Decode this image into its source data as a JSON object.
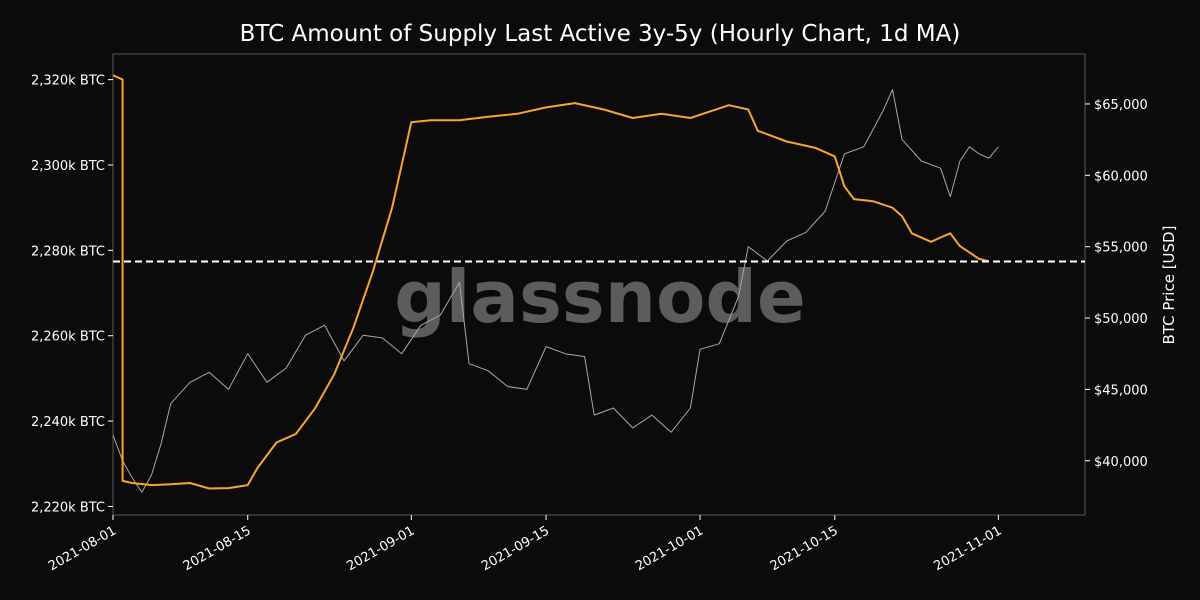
{
  "chart_data": {
    "type": "line",
    "title": "BTC Amount of Supply Last Active 3y-5y (Hourly Chart, 1d MA)",
    "watermark": "glassnode",
    "xlabel": "",
    "x_ticks": [
      "2021-08-01",
      "2021-08-15",
      "2021-09-01",
      "2021-09-15",
      "2021-10-01",
      "2021-10-15",
      "2021-11-01"
    ],
    "xlim": [
      "2021-08-01",
      "2021-11-10"
    ],
    "y_left": {
      "label": "",
      "lim": [
        2218,
        2326
      ],
      "ticks": [
        2220,
        2240,
        2260,
        2280,
        2300,
        2320
      ],
      "tick_labels": [
        "2,220k BTC",
        "2,240k BTC",
        "2,260k BTC",
        "2,280k BTC",
        "2,300k BTC",
        "2,320k BTC"
      ]
    },
    "y_right": {
      "label": "BTC Price [USD]",
      "lim": [
        36200,
        68500
      ],
      "ticks": [
        40000,
        45000,
        50000,
        55000,
        60000,
        65000
      ],
      "tick_labels": [
        "$40,000",
        "$45,000",
        "$50,000",
        "$55,000",
        "$60,000",
        "$65,000"
      ]
    },
    "reference_line": {
      "axis": "left",
      "value": 2277.4,
      "style": "dashed",
      "color": "#ffffff"
    },
    "grid": false,
    "series": [
      {
        "axis": "left",
        "color": "#f7a531",
        "points": [
          [
            "2021-08-01",
            2321
          ],
          [
            "2021-08-02",
            2320
          ],
          [
            "2021-08-02",
            2226
          ],
          [
            "2021-08-03",
            2225.5
          ],
          [
            "2021-08-05",
            2225
          ],
          [
            "2021-08-07",
            2225.2
          ],
          [
            "2021-08-09",
            2225.5
          ],
          [
            "2021-08-11",
            2224.2
          ],
          [
            "2021-08-13",
            2224.3
          ],
          [
            "2021-08-15",
            2225
          ],
          [
            "2021-08-16",
            2229
          ],
          [
            "2021-08-18",
            2235
          ],
          [
            "2021-08-20",
            2237
          ],
          [
            "2021-08-22",
            2243
          ],
          [
            "2021-08-24",
            2251
          ],
          [
            "2021-08-26",
            2262
          ],
          [
            "2021-08-28",
            2275
          ],
          [
            "2021-08-30",
            2290
          ],
          [
            "2021-09-01",
            2310
          ],
          [
            "2021-09-03",
            2310.5
          ],
          [
            "2021-09-06",
            2310.5
          ],
          [
            "2021-09-09",
            2311.3
          ],
          [
            "2021-09-12",
            2312
          ],
          [
            "2021-09-15",
            2313.5
          ],
          [
            "2021-09-18",
            2314.5
          ],
          [
            "2021-09-21",
            2313
          ],
          [
            "2021-09-24",
            2311
          ],
          [
            "2021-09-27",
            2312
          ],
          [
            "2021-09-30",
            2311
          ],
          [
            "2021-10-02",
            2312.5
          ],
          [
            "2021-10-04",
            2314
          ],
          [
            "2021-10-06",
            2313
          ],
          [
            "2021-10-07",
            2308
          ],
          [
            "2021-10-10",
            2305.5
          ],
          [
            "2021-10-13",
            2304
          ],
          [
            "2021-10-15",
            2302
          ],
          [
            "2021-10-16",
            2295
          ],
          [
            "2021-10-17",
            2292
          ],
          [
            "2021-10-19",
            2291.5
          ],
          [
            "2021-10-21",
            2290
          ],
          [
            "2021-10-22",
            2288
          ],
          [
            "2021-10-23",
            2284
          ],
          [
            "2021-10-25",
            2282
          ],
          [
            "2021-10-26",
            2283
          ],
          [
            "2021-10-27",
            2284
          ],
          [
            "2021-10-28",
            2281
          ],
          [
            "2021-10-30",
            2278
          ],
          [
            "2021-10-31",
            2277.4
          ]
        ]
      },
      {
        "axis": "right",
        "color": "#a8a8a8",
        "points": [
          [
            "2021-08-01",
            41800
          ],
          [
            "2021-08-02",
            40000
          ],
          [
            "2021-08-03",
            38800
          ],
          [
            "2021-08-04",
            37800
          ],
          [
            "2021-08-05",
            39000
          ],
          [
            "2021-08-06",
            41200
          ],
          [
            "2021-08-07",
            44000
          ],
          [
            "2021-08-09",
            45500
          ],
          [
            "2021-08-11",
            46200
          ],
          [
            "2021-08-13",
            45000
          ],
          [
            "2021-08-15",
            47500
          ],
          [
            "2021-08-17",
            45500
          ],
          [
            "2021-08-19",
            46500
          ],
          [
            "2021-08-21",
            48800
          ],
          [
            "2021-08-23",
            49500
          ],
          [
            "2021-08-25",
            47000
          ],
          [
            "2021-08-27",
            48800
          ],
          [
            "2021-08-29",
            48600
          ],
          [
            "2021-08-31",
            47500
          ],
          [
            "2021-09-02",
            49500
          ],
          [
            "2021-09-04",
            50200
          ],
          [
            "2021-09-06",
            52500
          ],
          [
            "2021-09-07",
            46800
          ],
          [
            "2021-09-09",
            46300
          ],
          [
            "2021-09-11",
            45200
          ],
          [
            "2021-09-13",
            45000
          ],
          [
            "2021-09-15",
            48000
          ],
          [
            "2021-09-17",
            47500
          ],
          [
            "2021-09-19",
            47300
          ],
          [
            "2021-09-20",
            43200
          ],
          [
            "2021-09-22",
            43700
          ],
          [
            "2021-09-24",
            42300
          ],
          [
            "2021-09-26",
            43200
          ],
          [
            "2021-09-28",
            42000
          ],
          [
            "2021-09-30",
            43700
          ],
          [
            "2021-10-01",
            47800
          ],
          [
            "2021-10-03",
            48200
          ],
          [
            "2021-10-05",
            51500
          ],
          [
            "2021-10-06",
            55000
          ],
          [
            "2021-10-08",
            54000
          ],
          [
            "2021-10-10",
            55400
          ],
          [
            "2021-10-12",
            56000
          ],
          [
            "2021-10-14",
            57500
          ],
          [
            "2021-10-15",
            59500
          ],
          [
            "2021-10-16",
            61500
          ],
          [
            "2021-10-18",
            62000
          ],
          [
            "2021-10-20",
            64500
          ],
          [
            "2021-10-21",
            66000
          ],
          [
            "2021-10-22",
            62500
          ],
          [
            "2021-10-24",
            61000
          ],
          [
            "2021-10-26",
            60500
          ],
          [
            "2021-10-27",
            58500
          ],
          [
            "2021-10-28",
            61000
          ],
          [
            "2021-10-29",
            62000
          ],
          [
            "2021-10-30",
            61500
          ],
          [
            "2021-10-31",
            61200
          ],
          [
            "2021-11-01",
            62000
          ]
        ]
      }
    ]
  }
}
